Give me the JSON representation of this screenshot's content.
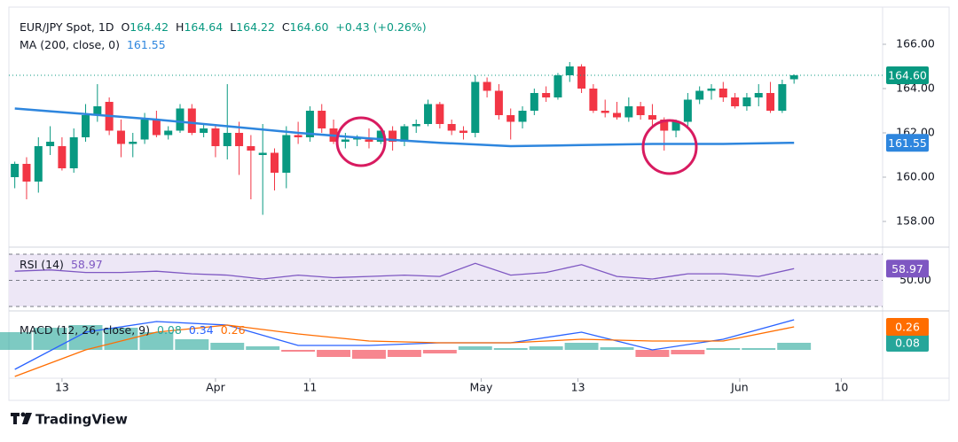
{
  "chart_data": [
    {
      "type": "candlestick",
      "title": "EUR/JPY Spot, 1D",
      "ohlc_labels": [
        {
          "key": "O",
          "value": "164.42"
        },
        {
          "key": "H",
          "value": "164.64"
        },
        {
          "key": "L",
          "value": "164.22"
        },
        {
          "key": "C",
          "value": "164.60"
        }
      ],
      "change": "+0.43 (+0.26%)",
      "up_color": "#089981",
      "down_color": "#f23645",
      "x": [
        0,
        1,
        2,
        3,
        4,
        5,
        6,
        7,
        8,
        9,
        10,
        11,
        12,
        13,
        14,
        15,
        16,
        17,
        18,
        19,
        20,
        21,
        22,
        23,
        24,
        25,
        26,
        27,
        28,
        29,
        30,
        31,
        32,
        33,
        34,
        35,
        36,
        37,
        38,
        39,
        40,
        41,
        42,
        43,
        44,
        45,
        46,
        47,
        48,
        49,
        50,
        51,
        52,
        53,
        54,
        55,
        56,
        57,
        58,
        59,
        60,
        61,
        62,
        63,
        64,
        65,
        66
      ],
      "open": [
        160.0,
        160.6,
        159.8,
        161.4,
        161.4,
        160.4,
        161.8,
        162.8,
        163.4,
        162.1,
        161.5,
        161.7,
        162.6,
        161.9,
        162.1,
        163.1,
        162.0,
        162.2,
        161.4,
        162.0,
        161.4,
        161.0,
        161.1,
        160.2,
        161.9,
        161.8,
        163.0,
        162.2,
        161.6,
        161.7,
        161.7,
        161.6,
        162.1,
        161.6,
        162.3,
        162.4,
        163.3,
        162.4,
        162.1,
        162.0,
        164.3,
        163.9,
        162.8,
        162.5,
        163.0,
        163.8,
        163.6,
        164.6,
        165.0,
        164.0,
        163.0,
        162.9,
        162.7,
        163.2,
        162.8,
        162.6,
        162.1,
        162.5,
        163.5,
        163.9,
        164.0,
        163.6,
        163.2,
        163.6,
        163.8,
        163.0,
        164.42
      ],
      "high": [
        160.7,
        160.9,
        161.8,
        162.3,
        161.8,
        162.2,
        163.3,
        164.2,
        163.6,
        162.6,
        162.0,
        162.9,
        163.0,
        162.3,
        163.3,
        163.3,
        162.4,
        162.4,
        164.2,
        162.5,
        161.9,
        162.4,
        161.3,
        162.3,
        162.5,
        163.2,
        163.3,
        162.6,
        162.0,
        161.9,
        162.2,
        162.2,
        162.3,
        162.4,
        162.6,
        163.5,
        163.4,
        162.6,
        162.3,
        164.6,
        164.5,
        164.2,
        163.1,
        163.2,
        164.0,
        164.1,
        164.7,
        165.2,
        165.1,
        164.2,
        163.5,
        163.4,
        163.6,
        163.4,
        163.3,
        162.7,
        162.6,
        163.8,
        164.1,
        164.2,
        164.3,
        163.8,
        163.8,
        164.2,
        164.3,
        164.4,
        164.64
      ],
      "low": [
        159.5,
        159.0,
        159.3,
        161.0,
        160.3,
        160.2,
        161.6,
        162.5,
        161.9,
        160.9,
        160.9,
        161.5,
        161.8,
        161.7,
        162.0,
        161.9,
        161.8,
        160.9,
        160.8,
        160.1,
        159.0,
        158.3,
        159.4,
        159.5,
        161.5,
        161.6,
        162.0,
        161.5,
        161.3,
        161.4,
        161.3,
        161.5,
        161.2,
        161.4,
        162.0,
        162.3,
        162.2,
        161.9,
        161.7,
        161.8,
        163.6,
        162.6,
        161.7,
        162.2,
        162.8,
        163.4,
        163.5,
        164.3,
        163.8,
        162.9,
        162.7,
        162.6,
        162.5,
        162.6,
        162.3,
        161.2,
        161.8,
        162.3,
        163.3,
        163.5,
        163.4,
        163.1,
        163.0,
        163.2,
        162.9,
        162.9,
        164.22
      ],
      "close": [
        160.6,
        159.8,
        161.4,
        161.6,
        160.4,
        161.8,
        162.8,
        163.2,
        162.1,
        161.5,
        161.6,
        162.6,
        161.9,
        162.1,
        163.1,
        162.0,
        162.2,
        161.4,
        162.0,
        161.4,
        161.2,
        161.1,
        160.2,
        161.9,
        161.8,
        163.0,
        162.2,
        161.6,
        161.7,
        161.8,
        161.6,
        162.1,
        161.6,
        162.3,
        162.4,
        163.3,
        162.4,
        162.1,
        162.0,
        164.3,
        163.9,
        162.8,
        162.5,
        163.0,
        163.8,
        163.6,
        164.6,
        165.0,
        164.0,
        163.0,
        162.9,
        162.7,
        163.2,
        162.8,
        162.6,
        162.1,
        162.5,
        163.5,
        163.9,
        164.0,
        163.6,
        163.2,
        163.6,
        163.8,
        163.0,
        164.2,
        164.6
      ],
      "close_label": "164.60",
      "overlays": [
        {
          "name": "MA (200, close, 0)",
          "value_label": "161.55",
          "color": "#2e86de",
          "x": [
            0,
            6,
            12,
            18,
            24,
            30,
            36,
            42,
            48,
            54,
            60,
            66
          ],
          "values": [
            163.1,
            162.85,
            162.6,
            162.3,
            162.0,
            161.75,
            161.55,
            161.4,
            161.45,
            161.5,
            161.5,
            161.55
          ]
        }
      ],
      "xlim": [
        -0.5,
        73.5
      ],
      "xticks": [
        {
          "value": 4,
          "label": "13"
        },
        {
          "value": 17,
          "label": "Apr"
        },
        {
          "value": 25,
          "label": "11"
        },
        {
          "value": 39.5,
          "label": "May"
        },
        {
          "value": 47.7,
          "label": "13"
        },
        {
          "value": 61.4,
          "label": "Jun"
        },
        {
          "value": 70,
          "label": "10"
        }
      ],
      "ylim": [
        157,
        167.6
      ],
      "yticks": [
        {
          "value": 158,
          "label": "158.00"
        },
        {
          "value": 160,
          "label": "160.00"
        },
        {
          "value": 162,
          "label": "162.00"
        },
        {
          "value": 164,
          "label": "164.00"
        },
        {
          "value": 166,
          "label": "166.00"
        }
      ]
    },
    {
      "type": "line",
      "title": "RSI (14)",
      "series": [
        {
          "name": "RSI",
          "color": "#7e57c2",
          "value_label": "58.97",
          "x": [
            0,
            3,
            6,
            9,
            12,
            15,
            18,
            21,
            24,
            27,
            30,
            33,
            36,
            39,
            42,
            45,
            48,
            51,
            54,
            57,
            60,
            63,
            66
          ],
          "values": [
            57,
            58,
            56,
            56,
            57,
            55,
            54,
            51,
            54,
            52,
            53,
            54,
            53,
            63,
            54,
            56,
            62,
            53,
            51,
            55,
            55,
            53,
            58.97
          ]
        }
      ],
      "bands": [
        30,
        70
      ],
      "band_color": "#ede7f6",
      "ylim": [
        27.3,
        72.7
      ],
      "yticks": [
        {
          "value": 50,
          "label": "50.00"
        }
      ]
    },
    {
      "type": "macd",
      "title": "MACD (12, 26, close, 9)",
      "series": [
        {
          "name": "Histogram",
          "kind": "bar",
          "color": "#26a69a",
          "negative_color": "#f23645",
          "value_label": "0.08",
          "axis_box": true,
          "x": [
            0,
            3,
            6,
            9,
            12,
            15,
            18,
            21,
            24,
            27,
            30,
            33,
            36,
            39,
            42,
            45,
            48,
            51,
            54,
            57,
            60,
            63,
            66
          ],
          "values": [
            0.2,
            0.25,
            0.28,
            0.25,
            0.2,
            0.12,
            0.08,
            0.04,
            -0.02,
            -0.08,
            -0.1,
            -0.08,
            -0.04,
            0.04,
            0.02,
            0.04,
            0.08,
            0.03,
            -0.08,
            -0.05,
            0.02,
            0.02,
            0.08
          ]
        },
        {
          "name": "MACD",
          "kind": "line",
          "color": "#2962ff",
          "value_label": "0.34",
          "axis_box": false,
          "x": [
            0,
            6,
            12,
            18,
            24,
            30,
            36,
            42,
            48,
            54,
            60,
            66
          ],
          "values": [
            -0.22,
            0.2,
            0.32,
            0.28,
            0.05,
            0.05,
            0.08,
            0.08,
            0.2,
            0.0,
            0.12,
            0.34
          ]
        },
        {
          "name": "Signal",
          "kind": "line",
          "color": "#ff6d00",
          "value_label": "0.26",
          "axis_box": true,
          "x": [
            0,
            6,
            12,
            18,
            24,
            30,
            36,
            42,
            48,
            54,
            60,
            66
          ],
          "values": [
            -0.3,
            0.0,
            0.2,
            0.28,
            0.18,
            0.1,
            0.08,
            0.08,
            0.12,
            0.1,
            0.1,
            0.26
          ]
        }
      ],
      "ylim": [
        -0.3,
        0.4
      ]
    }
  ],
  "branding": "TradingView"
}
